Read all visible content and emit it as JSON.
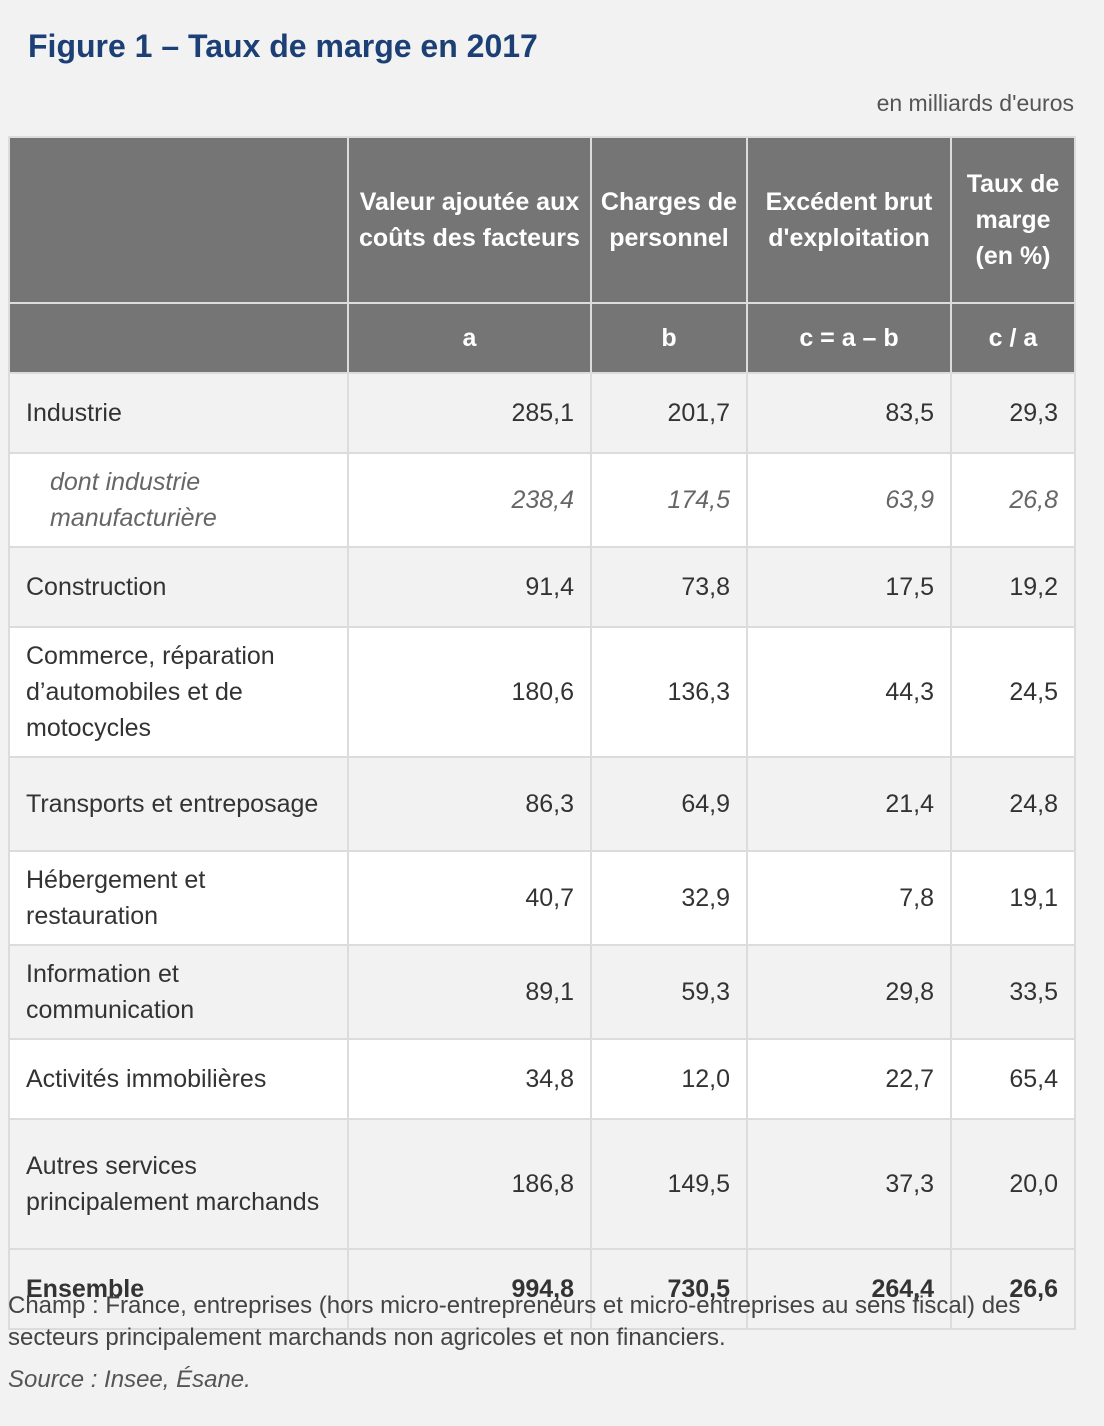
{
  "title": "Figure 1 – Taux de marge en 2017",
  "unit": "en milliards d'euros",
  "table": {
    "headers": [
      "",
      "Valeur ajoutée aux coûts des facteurs",
      "Charges de personnel",
      "Excédent brut d'exploitation",
      "Taux de marge (en %)"
    ],
    "formulas": [
      "",
      "a",
      "b",
      "c = a – b",
      "c / a"
    ],
    "rows": [
      {
        "label": "Industrie",
        "values": [
          "285,1",
          "201,7",
          "83,5",
          "29,3"
        ]
      },
      {
        "label": "dont industrie manufacturière",
        "values": [
          "238,4",
          "174,5",
          "63,9",
          "26,8"
        ]
      },
      {
        "label": "Construction",
        "values": [
          "91,4",
          "73,8",
          "17,5",
          "19,2"
        ]
      },
      {
        "label": "Commerce, réparation d’automobiles et de motocycles",
        "values": [
          "180,6",
          "136,3",
          "44,3",
          "24,5"
        ]
      },
      {
        "label": "Transports et entreposage",
        "values": [
          "86,3",
          "64,9",
          "21,4",
          "24,8"
        ]
      },
      {
        "label": "Hébergement et restauration",
        "values": [
          "40,7",
          "32,9",
          "7,8",
          "19,1"
        ]
      },
      {
        "label": "Information et communication",
        "values": [
          "89,1",
          "59,3",
          "29,8",
          "33,5"
        ]
      },
      {
        "label": "Activités immobilières",
        "values": [
          "34,8",
          "12,0",
          "22,7",
          "65,4"
        ]
      },
      {
        "label": "Autres services principalement marchands",
        "values": [
          "186,8",
          "149,5",
          "37,3",
          "20,0"
        ]
      },
      {
        "label": "Ensemble",
        "values": [
          "994,8",
          "730,5",
          "264,4",
          "26,6"
        ]
      }
    ]
  },
  "footnote": "Champ : France, entreprises (hors micro-entrepreneurs et micro-entreprises au sens fiscal) des secteurs principalement marchands non agricoles et non financiers.",
  "source": "Source : Insee, Ésane."
}
